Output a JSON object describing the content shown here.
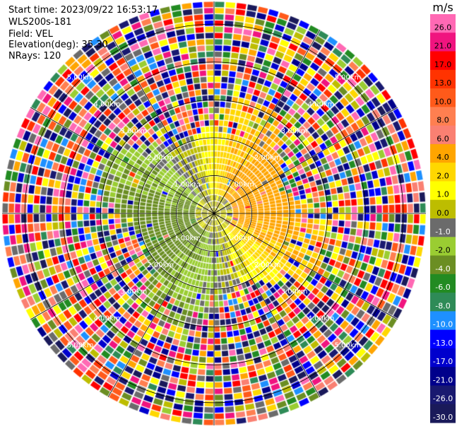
{
  "info": {
    "start_time": "Start time: 2023/09/22 16:53:17",
    "instrument": "WLS200s-181",
    "field": "Field: VEL",
    "elevation": "Elevation(deg): 35.30",
    "nrays": "NRays: 120"
  },
  "chart_data": {
    "type": "heatmap",
    "projection": "polar-ppi",
    "title": "",
    "colorbar": {
      "unit": "m/s",
      "ticks": [
        "26.0",
        "21.0",
        "17.0",
        "13.0",
        "10.0",
        "8.0",
        "6.0",
        "4.0",
        "2.0",
        "1.0",
        "0.0",
        "-1.0",
        "-2.0",
        "-4.0",
        "-6.0",
        "-8.0",
        "-10.0",
        "-13.0",
        "-17.0",
        "-21.0",
        "-26.0",
        "-30.0"
      ],
      "colors": [
        "#ff69b4",
        "#f0147f",
        "#ff0000",
        "#ff3300",
        "#ff5a1a",
        "#ff7f50",
        "#fa8072",
        "#ffa500",
        "#ffd700",
        "#ffff00",
        "#bdbd00",
        "#6b6b6b",
        "#9acd32",
        "#6b8e23",
        "#228b22",
        "#2e8b57",
        "#1e90ff",
        "#0000ff",
        "#0000cd",
        "#00008b",
        "#191970",
        "#1a1a5a"
      ]
    },
    "range_rings": {
      "unit": "km",
      "values": [
        1.0,
        2.0,
        3.0,
        4.0,
        5.0
      ],
      "labels": [
        "1.00km",
        "2.00km",
        "3.00km",
        "4.00km",
        "5.00km"
      ]
    },
    "rays": 120,
    "wind_pattern": {
      "near_field_west": "negative (-2 to -6 m/s, green)",
      "near_field_east": "positive (1 to 4 m/s, yellow-orange)",
      "far_field": "noise (random colors)"
    }
  }
}
